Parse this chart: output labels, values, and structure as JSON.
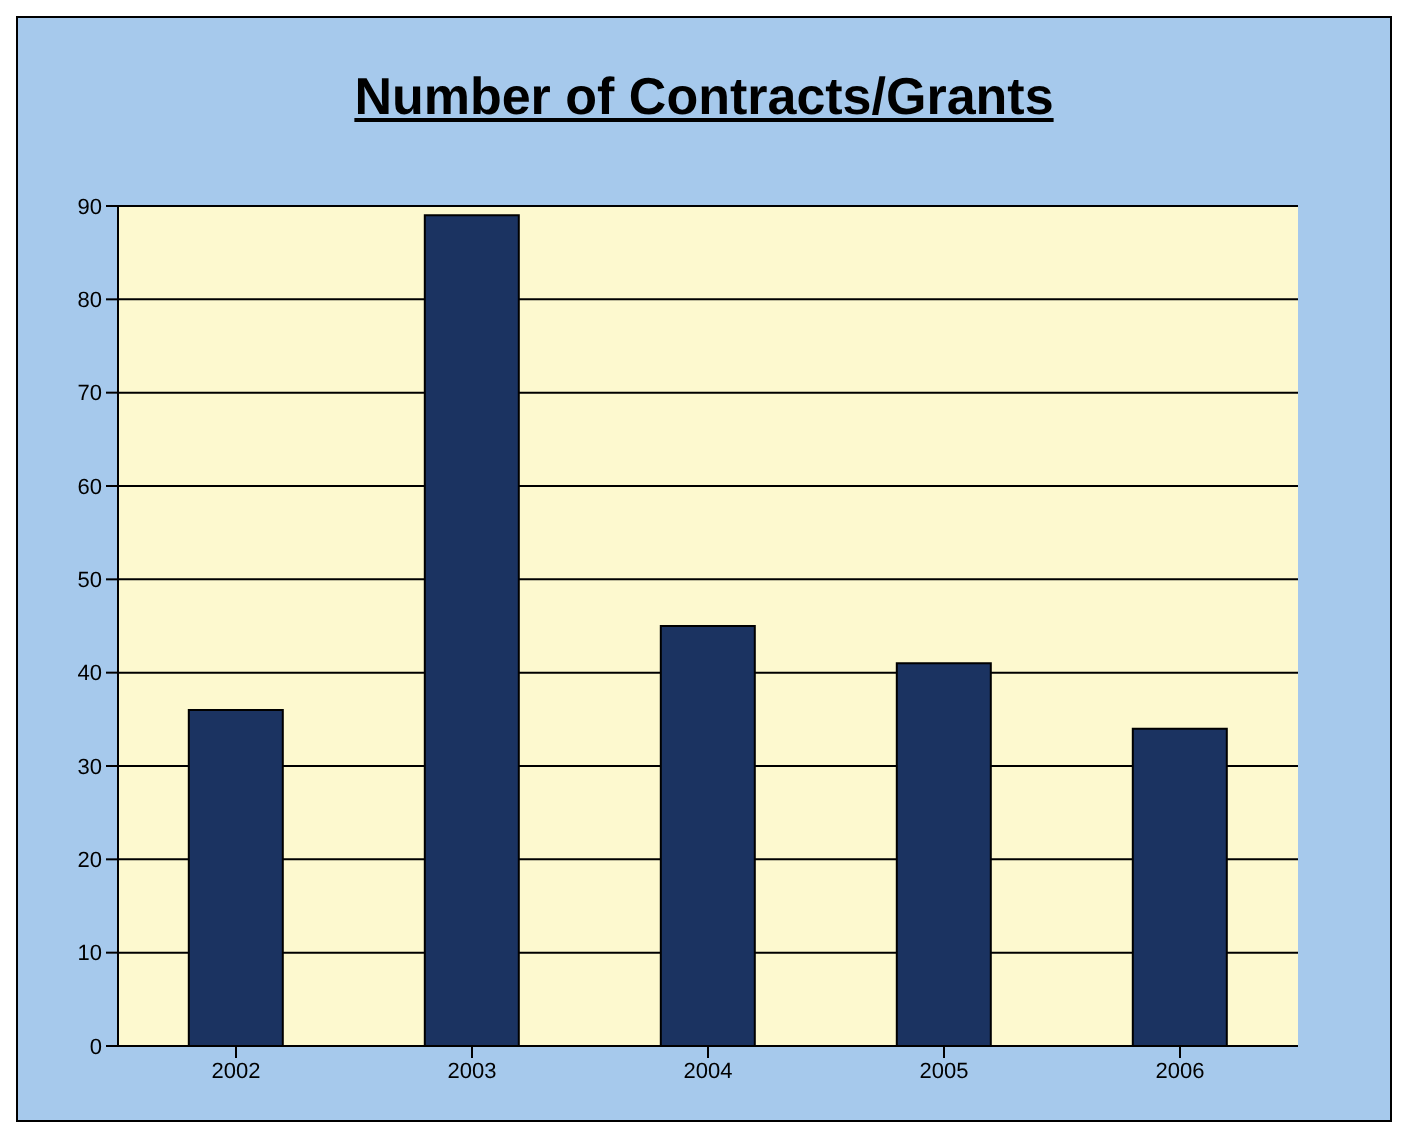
{
  "chart_data": {
    "type": "bar",
    "title": "Number of Contracts/Grants",
    "categories": [
      "2002",
      "2003",
      "2004",
      "2005",
      "2006"
    ],
    "values": [
      36,
      89,
      45,
      41,
      34
    ],
    "color": "#1b3361",
    "ylim": [
      0,
      90
    ],
    "yticks": [
      0,
      10,
      20,
      30,
      40,
      50,
      60,
      70,
      80,
      90
    ],
    "grid": "y"
  }
}
